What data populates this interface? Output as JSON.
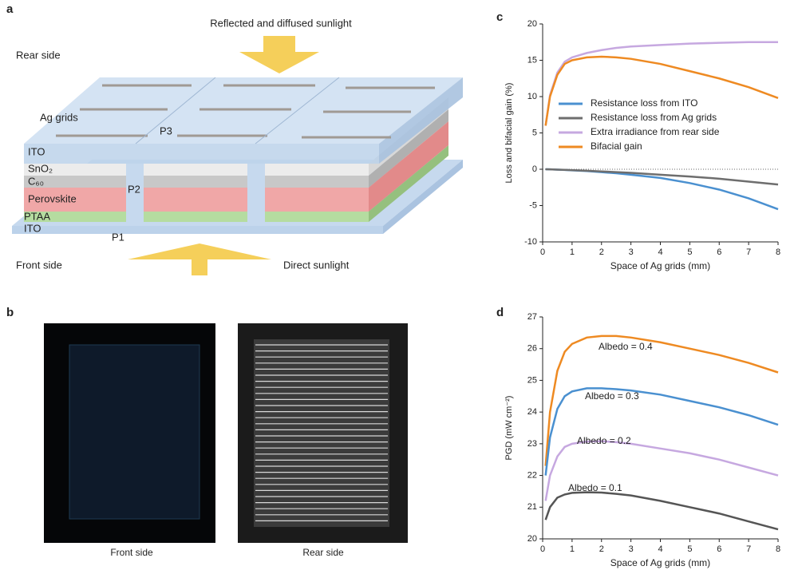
{
  "panels": {
    "a": {
      "label": "a",
      "texts": [
        "Reflected and diffused sunlight",
        "Rear side",
        "Ag grids",
        "P3",
        "ITO",
        "SnO₂",
        "C₆₀",
        "Perovskite",
        "P2",
        "PTAA",
        "ITO",
        "P1",
        "Front side",
        "Direct sunlight"
      ]
    },
    "b": {
      "label": "b",
      "captions": [
        "Front side",
        "Rear side"
      ]
    },
    "c": {
      "label": "c"
    },
    "d": {
      "label": "d"
    }
  },
  "chart_data": [
    {
      "type": "line",
      "xlabel": "Space of Ag grids (mm)",
      "ylabel": "Loss and bifacial gain (%)",
      "xlim": [
        0,
        8
      ],
      "ylim": [
        -10,
        20
      ],
      "xticks": [
        0,
        1,
        2,
        3,
        4,
        5,
        6,
        7,
        8
      ],
      "yticks": [
        -10,
        -5,
        0,
        5,
        10,
        15,
        20
      ],
      "x": [
        0.1,
        0.25,
        0.5,
        0.75,
        1,
        1.5,
        2,
        2.5,
        3,
        4,
        5,
        6,
        7,
        8
      ],
      "legend": "center-right",
      "series": [
        {
          "name": "Resistance loss from ITO",
          "color": "#4a90d0",
          "values": [
            0,
            -0.02,
            -0.05,
            -0.1,
            -0.15,
            -0.25,
            -0.4,
            -0.55,
            -0.75,
            -1.2,
            -1.9,
            -2.8,
            -4.0,
            -5.5
          ]
        },
        {
          "name": "Resistance loss from Ag grids",
          "color": "#6e6e6e",
          "values": [
            0,
            -0.02,
            -0.05,
            -0.08,
            -0.12,
            -0.2,
            -0.3,
            -0.4,
            -0.5,
            -0.75,
            -1.0,
            -1.3,
            -1.7,
            -2.1
          ]
        },
        {
          "name": "Extra irradiance from rear side",
          "color": "#c6a8e0",
          "values": [
            6,
            10.2,
            13.3,
            14.8,
            15.4,
            16.0,
            16.4,
            16.7,
            16.9,
            17.1,
            17.3,
            17.4,
            17.5,
            17.5
          ]
        },
        {
          "name": "Bifacial gain",
          "color": "#ee8a22",
          "values": [
            6,
            10,
            13,
            14.5,
            15,
            15.4,
            15.5,
            15.4,
            15.2,
            14.5,
            13.5,
            12.5,
            11.3,
            9.8
          ]
        }
      ]
    },
    {
      "type": "line",
      "xlabel": "Space of Ag grids (mm)",
      "ylabel": "PGD (mW cm⁻²)",
      "xlim": [
        0,
        8
      ],
      "ylim": [
        20,
        27
      ],
      "xticks": [
        0,
        1,
        2,
        3,
        4,
        5,
        6,
        7,
        8
      ],
      "yticks": [
        20,
        21,
        22,
        23,
        24,
        25,
        26,
        27
      ],
      "x": [
        0.1,
        0.25,
        0.5,
        0.75,
        1,
        1.5,
        2,
        2.5,
        3,
        4,
        5,
        6,
        7,
        8
      ],
      "series": [
        {
          "name": "Albedo = 0.4",
          "color": "#ee8a22",
          "values": [
            22.3,
            24.0,
            25.3,
            25.9,
            26.15,
            26.35,
            26.4,
            26.4,
            26.35,
            26.2,
            26.0,
            25.8,
            25.55,
            25.25
          ]
        },
        {
          "name": "Albedo = 0.3",
          "color": "#4a90d0",
          "values": [
            22.0,
            23.2,
            24.1,
            24.5,
            24.65,
            24.75,
            24.75,
            24.72,
            24.68,
            24.55,
            24.35,
            24.15,
            23.9,
            23.6
          ]
        },
        {
          "name": "Albedo = 0.2",
          "color": "#c6a8e0",
          "values": [
            21.2,
            22.0,
            22.6,
            22.9,
            23.0,
            23.07,
            23.08,
            23.05,
            23.0,
            22.85,
            22.7,
            22.5,
            22.25,
            22.0
          ]
        },
        {
          "name": "Albedo = 0.1",
          "color": "#555555",
          "values": [
            20.6,
            21.0,
            21.3,
            21.4,
            21.45,
            21.47,
            21.46,
            21.42,
            21.37,
            21.2,
            21.0,
            20.8,
            20.55,
            20.3
          ]
        }
      ]
    }
  ]
}
